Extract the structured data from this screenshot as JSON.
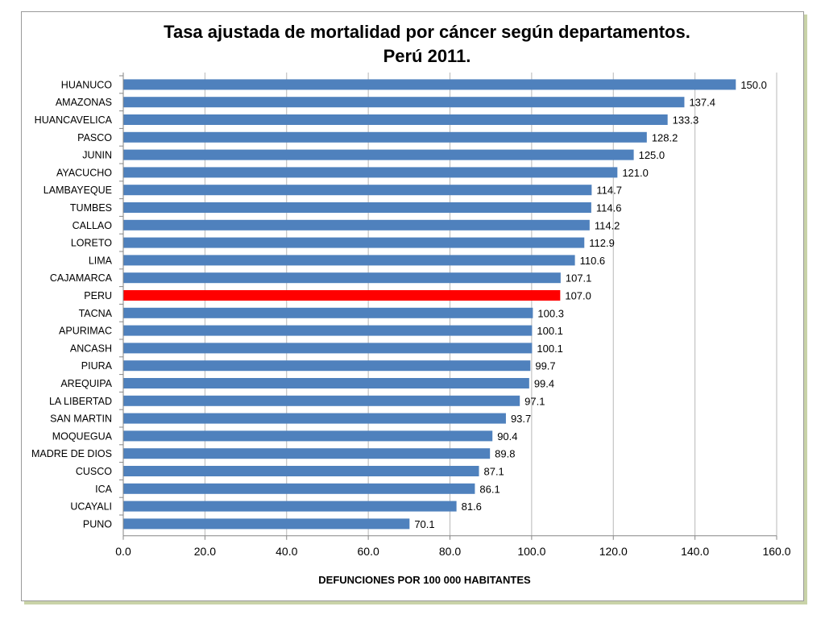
{
  "chart_data": {
    "type": "bar",
    "orientation": "horizontal",
    "title": "Tasa ajustada de mortalidad por cáncer según departamentos.",
    "subtitle": "Perú 2011.",
    "xlabel": "DEFUNCIONES POR 100 000 HABITANTES",
    "ylabel": "",
    "xlim": [
      0,
      160
    ],
    "xticks": [
      "0.0",
      "20.0",
      "40.0",
      "60.0",
      "80.0",
      "100.0",
      "120.0",
      "140.0",
      "160.0"
    ],
    "grid": "vertical",
    "bar_color": "#4f81bd",
    "highlight_color": "#ff0000",
    "highlight_category": "PERU",
    "categories": [
      "HUANUCO",
      "AMAZONAS",
      "HUANCAVELICA",
      "PASCO",
      "JUNIN",
      "AYACUCHO",
      "LAMBAYEQUE",
      "TUMBES",
      "CALLAO",
      "LORETO",
      "LIMA",
      "CAJAMARCA",
      "PERU",
      "TACNA",
      "APURIMAC",
      "ANCASH",
      "PIURA",
      "AREQUIPA",
      "LA LIBERTAD",
      "SAN MARTIN",
      "MOQUEGUA",
      "MADRE DE DIOS",
      "CUSCO",
      "ICA",
      "UCAYALI",
      "PUNO"
    ],
    "values": [
      150.0,
      137.4,
      133.3,
      128.2,
      125.0,
      121.0,
      114.7,
      114.6,
      114.2,
      112.9,
      110.6,
      107.1,
      107.0,
      100.3,
      100.1,
      100.1,
      99.7,
      99.4,
      97.1,
      93.7,
      90.4,
      89.8,
      87.1,
      86.1,
      81.6,
      70.1
    ],
    "value_labels": [
      "150.0",
      "137.4",
      "133.3",
      "128.2",
      "125.0",
      "121.0",
      "114.7",
      "114.6",
      "114.2",
      "112.9",
      "110.6",
      "107.1",
      "107.0",
      "100.3",
      "100.1",
      "100.1",
      "99.7",
      "99.4",
      "97.1",
      "93.7",
      "90.4",
      "89.8",
      "87.1",
      "86.1",
      "81.6",
      "70.1"
    ]
  }
}
